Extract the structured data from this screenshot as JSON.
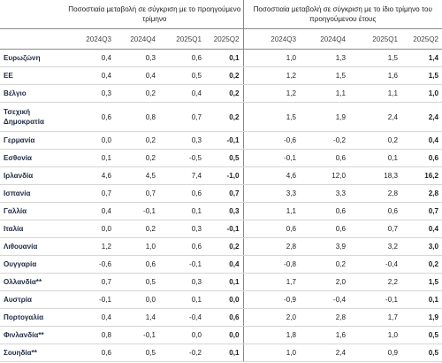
{
  "headers": {
    "group1": "Ποσοστιαία μεταβολή σε σύγκριση με το προηγούμενο τρίμηνο",
    "group2": "Ποσοστιαία μεταβολή σε σύγκριση με το ίδιο τρίμηνο του προηγούμενου έτους",
    "quarters": [
      "2024Q3",
      "2024Q4",
      "2025Q1",
      "2025Q2"
    ]
  },
  "rows": [
    {
      "country": "Ευρωζώνη",
      "qoq": [
        "0,4",
        "0,3",
        "0,6",
        "0,1"
      ],
      "yoy": [
        "1,0",
        "1,3",
        "1,5",
        "1,4"
      ]
    },
    {
      "country": "ΕΕ",
      "qoq": [
        "0,4",
        "0,4",
        "0,5",
        "0,2"
      ],
      "yoy": [
        "1,2",
        "1,5",
        "1,6",
        "1,5"
      ]
    },
    {
      "country": "Βέλγιο",
      "qoq": [
        "0,3",
        "0,2",
        "0,4",
        "0,2"
      ],
      "yoy": [
        "1,2",
        "1,1",
        "1,1",
        "1,0"
      ]
    },
    {
      "country": "Τσεχική Δημοκρατία",
      "qoq": [
        "0,6",
        "0,8",
        "0,7",
        "0,2"
      ],
      "yoy": [
        "1,5",
        "1,9",
        "2,4",
        "2,4"
      ]
    },
    {
      "country": "Γερμανία",
      "qoq": [
        "0,0",
        "0,2",
        "0,3",
        "-0,1"
      ],
      "yoy": [
        "-0,6",
        "-0,2",
        "0,2",
        "0,4"
      ]
    },
    {
      "country": "Εσθονία",
      "qoq": [
        "0,1",
        "0,2",
        "-0,5",
        "0,5"
      ],
      "yoy": [
        "-0,1",
        "0,6",
        "0,1",
        "0,6"
      ]
    },
    {
      "country": "Ιρλανδία",
      "qoq": [
        "4,6",
        "4,5",
        "7,4",
        "-1,0"
      ],
      "yoy": [
        "4,6",
        "12,0",
        "18,3",
        "16,2"
      ]
    },
    {
      "country": "Ισπανία",
      "qoq": [
        "0,7",
        "0,7",
        "0,6",
        "0,7"
      ],
      "yoy": [
        "3,3",
        "3,3",
        "2,8",
        "2,8"
      ]
    },
    {
      "country": "Γαλλία",
      "qoq": [
        "0,4",
        "-0,1",
        "0,1",
        "0,3"
      ],
      "yoy": [
        "1,1",
        "0,6",
        "0,6",
        "0,7"
      ]
    },
    {
      "country": "Ιταλία",
      "qoq": [
        "0,0",
        "0,2",
        "0,3",
        "-0,1"
      ],
      "yoy": [
        "0,6",
        "0,6",
        "0,7",
        "0,4"
      ]
    },
    {
      "country": "Λιθουανία",
      "qoq": [
        "1,2",
        "1,0",
        "0,6",
        "0,2"
      ],
      "yoy": [
        "2,8",
        "3,9",
        "3,2",
        "3,0"
      ]
    },
    {
      "country": "Ουγγαρία",
      "qoq": [
        "-0,6",
        "0,6",
        "-0,1",
        "0,4"
      ],
      "yoy": [
        "-0,8",
        "0,2",
        "-0,4",
        "0,2"
      ],
      "gap": true
    },
    {
      "country": "Ολλανδία**",
      "qoq": [
        "0,7",
        "0,5",
        "0,3",
        "0,1"
      ],
      "yoy": [
        "1,7",
        "2,0",
        "2,2",
        "1,5"
      ]
    },
    {
      "country": "Αυστρία",
      "qoq": [
        "-0,1",
        "0,0",
        "0,1",
        "0,0"
      ],
      "yoy": [
        "-0,9",
        "-0,4",
        "-0,1",
        "0,1"
      ]
    },
    {
      "country": "Πορτογαλία",
      "qoq": [
        "0,4",
        "1,4",
        "-0,4",
        "0,6"
      ],
      "yoy": [
        "2,0",
        "2,8",
        "1,7",
        "1,9"
      ]
    },
    {
      "country": "Φινλανδία**",
      "qoq": [
        "0,8",
        "-0,1",
        "0,0",
        "0,0"
      ],
      "yoy": [
        "1,8",
        "1,6",
        "1,0",
        "0,5"
      ]
    },
    {
      "country": "Σουηδία**",
      "qoq": [
        "0,6",
        "0,5",
        "-0,2",
        "0,1"
      ],
      "yoy": [
        "1,0",
        "2,4",
        "0,9",
        "0,5"
      ]
    }
  ]
}
